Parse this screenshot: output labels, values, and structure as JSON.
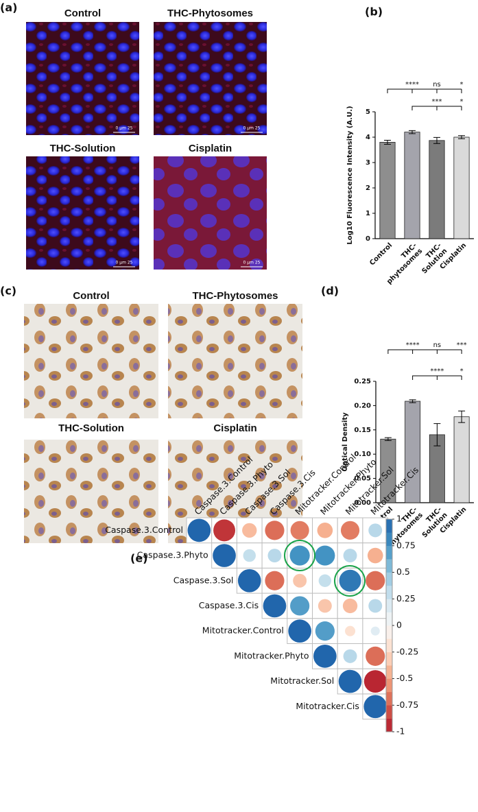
{
  "panels": {
    "a": {
      "label": "(a)",
      "images": [
        {
          "title": "Control",
          "scale_bar": "0   μm   25"
        },
        {
          "title": "THC-Phytosomes",
          "scale_bar": "0   μm   25"
        },
        {
          "title": "THC-Solution",
          "scale_bar": "0   μm   25"
        },
        {
          "title": "Cisplatin",
          "scale_bar": "0   μm   25"
        }
      ]
    },
    "c": {
      "label": "(c)",
      "images": [
        {
          "title": "Control"
        },
        {
          "title": "THC-Phytosomes"
        },
        {
          "title": "THC-Solution"
        },
        {
          "title": "Cisplatin"
        }
      ]
    }
  },
  "chart_data": [
    {
      "type": "bar",
      "panel_label": "(b)",
      "y_label": "Log10 Fluorescence Intensity (A.U.)",
      "categories": [
        "Control",
        "THC-\nphytosomes",
        "THC-\nSolution",
        "Cisplatin"
      ],
      "values": [
        3.8,
        4.2,
        3.87,
        4.0
      ],
      "errors": [
        0.08,
        0.06,
        0.12,
        0.06
      ],
      "colors": [
        "#8e8e8e",
        "#a4a4ac",
        "#7b7b7b",
        "#dadada"
      ],
      "ylim": [
        0,
        5
      ],
      "yticks": [
        0,
        1,
        2,
        3,
        4,
        5
      ],
      "significance": [
        [
          "****",
          "ns",
          "*"
        ],
        [
          "***",
          "*"
        ]
      ]
    },
    {
      "type": "bar",
      "panel_label": "(d)",
      "y_label": "Optical Density",
      "categories": [
        "Control",
        "THC-\nphytosomes",
        "THC-\nSolution",
        "Cisplatin"
      ],
      "values": [
        0.131,
        0.209,
        0.14,
        0.177
      ],
      "errors": [
        0.003,
        0.003,
        0.023,
        0.012
      ],
      "colors": [
        "#8e8e8e",
        "#a4a4ac",
        "#7b7b7b",
        "#dadada"
      ],
      "ylim": [
        0,
        0.25
      ],
      "yticks": [
        {
          "value": 0,
          "label": "0.00"
        },
        {
          "value": 0.05,
          "label": "0.05"
        },
        {
          "value": 0.1,
          "label": "0.10"
        },
        {
          "value": 0.15,
          "label": "0.15"
        },
        {
          "value": 0.2,
          "label": "0.20"
        },
        {
          "value": 0.25,
          "label": "0.25"
        }
      ],
      "significance": [
        [
          "****",
          "ns",
          "***"
        ],
        [
          "****",
          "*"
        ]
      ]
    },
    {
      "type": "corrplot",
      "panel_label": "(e)",
      "labels": [
        "Caspase.3.Control",
        "Caspase.3.Phyto",
        "Caspase.3.Sol",
        "Caspase.3.Cis",
        "Mitotracker.Control",
        "Mitotracker.Phyto",
        "Mitotracker.Sol",
        "Mitotracker.Cis"
      ],
      "values": [
        [
          1,
          -0.9,
          -0.4,
          -0.7,
          -0.65,
          -0.45,
          -0.65,
          0.35
        ],
        [
          null,
          1,
          0.3,
          0.35,
          0.75,
          0.75,
          0.35,
          -0.45
        ],
        [
          null,
          null,
          1,
          -0.7,
          -0.35,
          0.3,
          0.9,
          -0.7
        ],
        [
          null,
          null,
          null,
          1,
          0.7,
          -0.35,
          -0.4,
          0.35
        ],
        [
          null,
          null,
          null,
          null,
          1,
          0.7,
          -0.2,
          0.15
        ],
        [
          null,
          null,
          null,
          null,
          null,
          1,
          0.35,
          -0.7
        ],
        [
          null,
          null,
          null,
          null,
          null,
          null,
          1,
          -0.95
        ],
        [
          null,
          null,
          null,
          null,
          null,
          null,
          null,
          1
        ]
      ],
      "colorscale": [
        "#b2182b",
        "#d6604d",
        "#f4a582",
        "#fddbc7",
        "#f7f7f7",
        "#d1e5f0",
        "#92c5de",
        "#4393c3",
        "#2166ac"
      ],
      "zlim": [
        -1,
        1
      ],
      "zticks": [
        1,
        0.75,
        0.5,
        0.25,
        0,
        -0.25,
        -0.5,
        -0.75,
        -1
      ]
    }
  ]
}
